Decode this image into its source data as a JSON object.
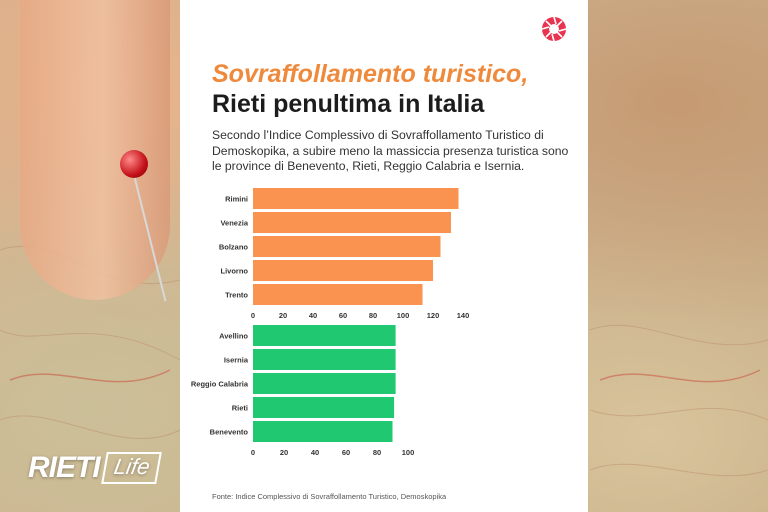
{
  "title_line1": "Sovraffollamento turistico,",
  "title_line2": "Rieti penultima in Italia",
  "subtitle": "Secondo l’Indice Complessivo di Sovraffollamento Turistico di Demoskopika, a subire meno la massiccia presenza turistica sono le province di Benevento, Rieti, Reggio Calabria e Isernia.",
  "source": "Fonte: Indice Complessivo di Sovraffollamento Turistico, Demoskopika",
  "brand": {
    "rieti": "RIETI",
    "life": "Life"
  },
  "colors": {
    "accent": "#ef8a3c",
    "top_bars": "#fa9250",
    "bottom_bars": "#20c872"
  },
  "chart_data": [
    {
      "type": "bar",
      "orientation": "horizontal",
      "categories": [
        "Rimini",
        "Venezia",
        "Bolzano",
        "Livorno",
        "Trento"
      ],
      "values": [
        137,
        132,
        125,
        120,
        113
      ],
      "xlim": [
        0,
        140
      ],
      "xticks": [
        "0",
        "20",
        "40",
        "60",
        "80",
        "100",
        "120",
        "140"
      ],
      "grid": false
    },
    {
      "type": "bar",
      "orientation": "horizontal",
      "categories": [
        "Avellino",
        "Isernia",
        "Reggio Calabria",
        "Rieti",
        "Benevento"
      ],
      "values": [
        92,
        92,
        92,
        91,
        90
      ],
      "xlim": [
        0,
        100
      ],
      "xticks": [
        "0",
        "20",
        "40",
        "60",
        "80",
        "100"
      ],
      "grid": false
    }
  ]
}
